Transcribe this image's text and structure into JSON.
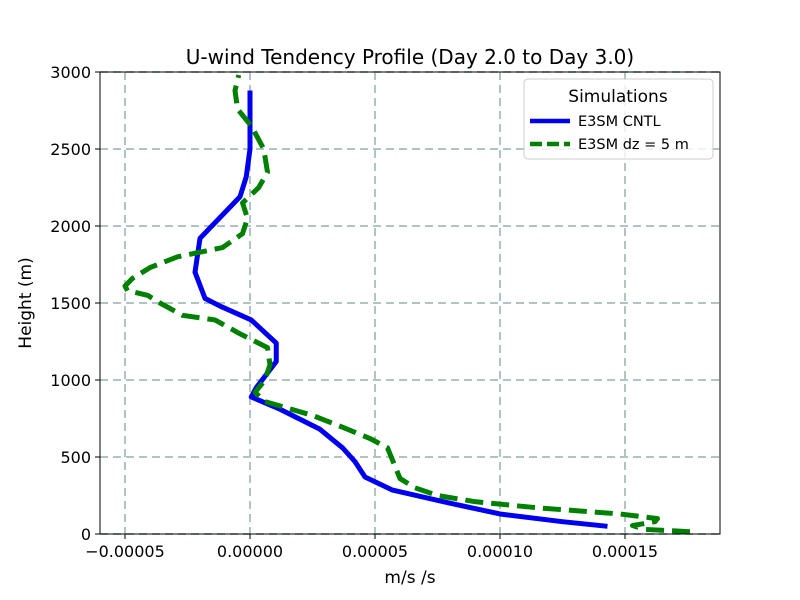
{
  "chart_data": {
    "type": "line",
    "title": "U-wind Tendency Profile (Day 2.0 to Day 3.0)",
    "xlabel": "m/s /s",
    "ylabel": "Height (m)",
    "xlim": [
      -6e-05,
      0.000188
    ],
    "ylim": [
      0,
      3000
    ],
    "grid": true,
    "grid_style": "dashed",
    "x_ticks": [
      {
        "value": -5e-05,
        "label": "−0.00005"
      },
      {
        "value": 0,
        "label": "0.00000"
      },
      {
        "value": 5e-05,
        "label": "0.00005"
      },
      {
        "value": 0.0001,
        "label": "0.00010"
      },
      {
        "value": 0.00015,
        "label": "0.00015"
      }
    ],
    "y_ticks": [
      {
        "value": 0,
        "label": "0"
      },
      {
        "value": 500,
        "label": "500"
      },
      {
        "value": 1000,
        "label": "1000"
      },
      {
        "value": 1500,
        "label": "1500"
      },
      {
        "value": 2000,
        "label": "2000"
      },
      {
        "value": 2500,
        "label": "2500"
      },
      {
        "value": 3000,
        "label": "3000"
      }
    ],
    "legend": {
      "title": "Simulations",
      "position": "top-right"
    },
    "series": [
      {
        "name": "E3SM CNTL",
        "color": "#0000ee",
        "line_style": "solid",
        "points": [
          {
            "x": 0.000143,
            "y": 50
          },
          {
            "x": 0.000125,
            "y": 80
          },
          {
            "x": 0.0001,
            "y": 130
          },
          {
            "x": 8e-05,
            "y": 200
          },
          {
            "x": 5.7e-05,
            "y": 285
          },
          {
            "x": 4.6e-05,
            "y": 370
          },
          {
            "x": 4.2e-05,
            "y": 470
          },
          {
            "x": 3.7e-05,
            "y": 560
          },
          {
            "x": 2.8e-05,
            "y": 680
          },
          {
            "x": 1.2e-05,
            "y": 810
          },
          {
            "x": 5e-07,
            "y": 890
          },
          {
            "x": 2.5e-06,
            "y": 950
          },
          {
            "x": 1.05e-05,
            "y": 1120
          },
          {
            "x": 1.05e-05,
            "y": 1240
          },
          {
            "x": 5e-07,
            "y": 1390
          },
          {
            "x": -1.2e-05,
            "y": 1480
          },
          {
            "x": -1.8e-05,
            "y": 1530
          },
          {
            "x": -2.2e-05,
            "y": 1700
          },
          {
            "x": -2e-05,
            "y": 1920
          },
          {
            "x": -4e-06,
            "y": 2190
          },
          {
            "x": -1.5e-06,
            "y": 2320
          },
          {
            "x": 0,
            "y": 2500
          },
          {
            "x": 0,
            "y": 2880
          }
        ]
      },
      {
        "name": "E3SM dz = 5 m",
        "color": "#008000",
        "line_style": "dashed",
        "points": [
          {
            "x": 0.000176,
            "y": 15
          },
          {
            "x": 0.000158,
            "y": 30
          },
          {
            "x": 0.000153,
            "y": 55
          },
          {
            "x": 0.000162,
            "y": 80
          },
          {
            "x": 0.000163,
            "y": 100
          },
          {
            "x": 0.000148,
            "y": 130
          },
          {
            "x": 0.000115,
            "y": 170
          },
          {
            "x": 9e-05,
            "y": 210
          },
          {
            "x": 7.5e-05,
            "y": 250
          },
          {
            "x": 6.6e-05,
            "y": 300
          },
          {
            "x": 6e-05,
            "y": 360
          },
          {
            "x": 5.8e-05,
            "y": 440
          },
          {
            "x": 5.5e-05,
            "y": 560
          },
          {
            "x": 4.8e-05,
            "y": 620
          },
          {
            "x": 3.6e-05,
            "y": 700
          },
          {
            "x": 2.5e-05,
            "y": 770
          },
          {
            "x": 6e-06,
            "y": 860
          },
          {
            "x": 2e-06,
            "y": 920
          },
          {
            "x": 6e-06,
            "y": 1000
          },
          {
            "x": 8e-06,
            "y": 1100
          },
          {
            "x": 7e-06,
            "y": 1210
          },
          {
            "x": -4e-06,
            "y": 1300
          },
          {
            "x": -1.4e-05,
            "y": 1390
          },
          {
            "x": -2.7e-05,
            "y": 1420
          },
          {
            "x": -3.6e-05,
            "y": 1500
          },
          {
            "x": -4.1e-05,
            "y": 1550
          },
          {
            "x": -4.9e-05,
            "y": 1580
          },
          {
            "x": -5e-05,
            "y": 1610
          },
          {
            "x": -4.7e-05,
            "y": 1660
          },
          {
            "x": -4e-05,
            "y": 1730
          },
          {
            "x": -2.9e-05,
            "y": 1800
          },
          {
            "x": -1.1e-05,
            "y": 1860
          },
          {
            "x": -3e-06,
            "y": 1950
          },
          {
            "x": -1e-06,
            "y": 2050
          },
          {
            "x": -3e-06,
            "y": 2150
          },
          {
            "x": 3.5e-06,
            "y": 2250
          },
          {
            "x": 7e-06,
            "y": 2350
          },
          {
            "x": 5.5e-06,
            "y": 2500
          },
          {
            "x": 5e-07,
            "y": 2650
          },
          {
            "x": -5e-06,
            "y": 2760
          },
          {
            "x": -6e-06,
            "y": 2880
          },
          {
            "x": -4.5e-06,
            "y": 2980
          }
        ]
      }
    ]
  }
}
